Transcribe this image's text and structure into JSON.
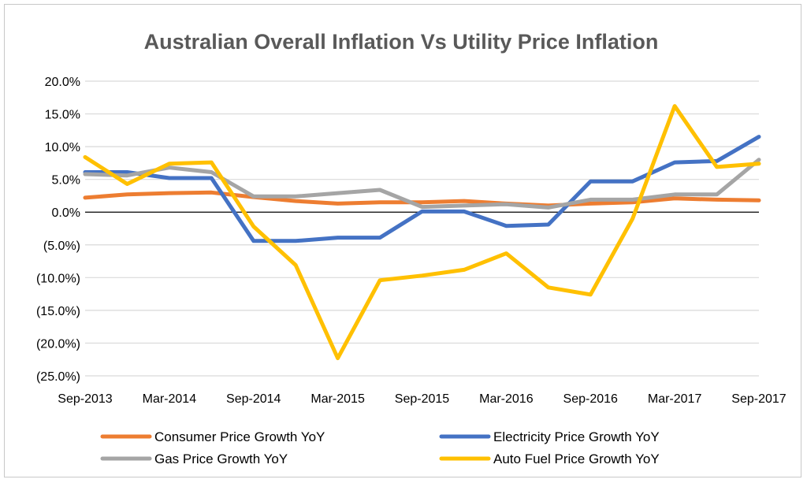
{
  "chart_data": {
    "type": "line",
    "title": "Australian Overall Inflation Vs Utility Price Inflation",
    "xlabel": "",
    "ylabel": "",
    "x_tick_labels": [
      "Sep-2013",
      "Mar-2014",
      "Sep-2014",
      "Mar-2015",
      "Sep-2015",
      "Mar-2016",
      "Sep-2016",
      "Mar-2017",
      "Sep-2017"
    ],
    "y_tick_labels": [
      "20.0%",
      "15.0%",
      "10.0%",
      "5.0%",
      "0.0%",
      "(5.0%)",
      "(10.0%)",
      "(15.0%)",
      "(20.0%)",
      "(25.0%)"
    ],
    "y_ticks": [
      20,
      15,
      10,
      5,
      0,
      -5,
      -10,
      -15,
      -20,
      -25
    ],
    "ylim": [
      -25,
      20
    ],
    "x": [
      "Sep-2013",
      "Dec-2013",
      "Mar-2014",
      "Jun-2014",
      "Sep-2014",
      "Dec-2014",
      "Mar-2015",
      "Jun-2015",
      "Sep-2015",
      "Dec-2015",
      "Mar-2016",
      "Jun-2016",
      "Sep-2016",
      "Dec-2016",
      "Mar-2017",
      "Jun-2017",
      "Sep-2017"
    ],
    "grid": true,
    "legend_position": "bottom",
    "series": [
      {
        "name": "Consumer Price Growth YoY",
        "color": "#ED7D31",
        "values": [
          2.2,
          2.7,
          2.9,
          3.0,
          2.3,
          1.7,
          1.3,
          1.5,
          1.5,
          1.7,
          1.3,
          1.0,
          1.3,
          1.5,
          2.1,
          1.9,
          1.8
        ]
      },
      {
        "name": "Electricity Price Growth YoY",
        "color": "#4472C4",
        "values": [
          6.1,
          6.1,
          5.2,
          5.2,
          -4.4,
          -4.4,
          -3.9,
          -3.9,
          0.1,
          0.1,
          -2.1,
          -1.9,
          4.7,
          4.7,
          7.6,
          7.8,
          11.5
        ]
      },
      {
        "name": "Gas Price Growth YoY",
        "color": "#A5A5A5",
        "values": [
          5.8,
          5.6,
          6.8,
          6.1,
          2.4,
          2.4,
          2.9,
          3.4,
          0.8,
          1.0,
          1.2,
          0.7,
          1.9,
          1.9,
          2.7,
          2.7,
          8.0
        ]
      },
      {
        "name": "Auto Fuel Price Growth YoY",
        "color": "#FFC000",
        "values": [
          8.4,
          4.3,
          7.4,
          7.6,
          -2.2,
          -8.1,
          -22.3,
          -10.4,
          -9.7,
          -8.8,
          -6.3,
          -11.5,
          -12.6,
          -1.0,
          16.2,
          6.9,
          7.4
        ]
      }
    ],
    "legend": [
      {
        "name": "Consumer Price Growth YoY",
        "color": "#ED7D31"
      },
      {
        "name": "Electricity Price Growth YoY",
        "color": "#4472C4"
      },
      {
        "name": "Gas Price Growth YoY",
        "color": "#A5A5A5"
      },
      {
        "name": "Auto Fuel Price Growth YoY",
        "color": "#FFC000"
      }
    ]
  }
}
